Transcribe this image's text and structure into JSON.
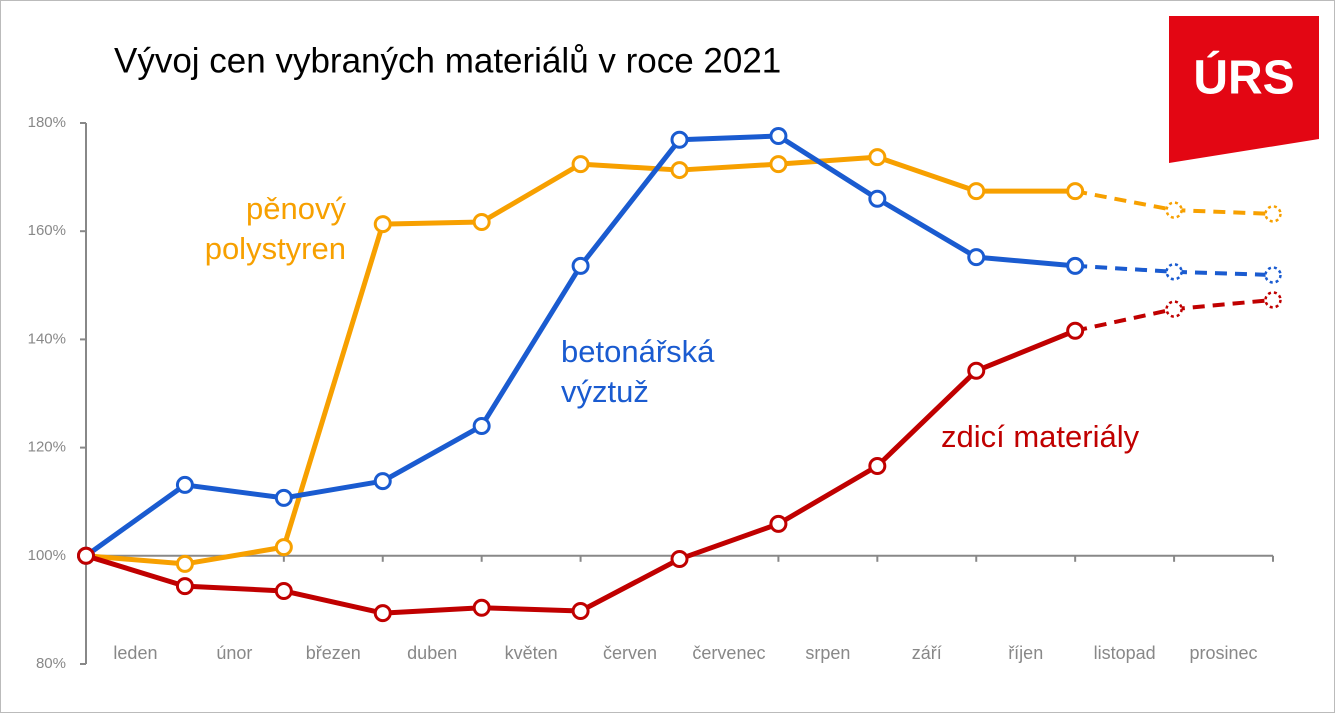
{
  "logo": "ÚRS",
  "chart_data": {
    "type": "line",
    "title": "Vývoj cen vybraných materiálů v roce 2021",
    "categories": [
      null,
      "leden",
      "únor",
      "březen",
      "duben",
      "květen",
      "červen",
      "červenec",
      "srpen",
      "září",
      "říjen",
      "listopad",
      "prosinec"
    ],
    "ylim": [
      80,
      180
    ],
    "yticks": [
      {
        "value": 80,
        "label": "80%"
      },
      {
        "value": 100,
        "label": "100%"
      },
      {
        "value": 120,
        "label": "120%"
      },
      {
        "value": 140,
        "label": "140%"
      },
      {
        "value": 160,
        "label": "160%"
      },
      {
        "value": 180,
        "label": "180%"
      }
    ],
    "baseline": 100,
    "series": [
      {
        "name": "pěnový polystyren",
        "color": "#f7a000",
        "dashed_from": 10,
        "values": [
          100,
          98.5,
          101.6,
          161.3,
          161.7,
          172.4,
          171.3,
          172.4,
          173.7,
          167.4,
          167.4,
          163.9,
          163.2
        ]
      },
      {
        "name": "betonářská výztuž",
        "color": "#1a5bd0",
        "dashed_from": 10,
        "values": [
          100,
          113.1,
          110.7,
          113.8,
          124.0,
          153.6,
          176.9,
          177.6,
          166.0,
          155.2,
          153.6,
          152.5,
          151.9
        ]
      },
      {
        "name": "zdicí materiály",
        "color": "#c00000",
        "dashed_from": 10,
        "values": [
          100,
          94.4,
          93.5,
          89.4,
          90.4,
          89.8,
          99.4,
          105.9,
          116.6,
          134.2,
          141.6,
          145.6,
          147.3
        ]
      }
    ]
  }
}
